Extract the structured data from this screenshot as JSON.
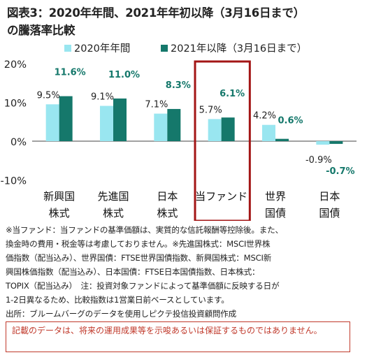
{
  "title_lines": [
    "図表3：2020年年間、2021年年初以降（3月16日まで）",
    "の騰落率比較"
  ],
  "chart_data": {
    "type": "bar",
    "categories": [
      [
        "新興国",
        "株式"
      ],
      [
        "先進国",
        "株式"
      ],
      [
        "日本",
        "株式"
      ],
      [
        "当ファンド"
      ],
      [
        "世界",
        "国債"
      ],
      [
        "日本",
        "国債"
      ]
    ],
    "series": [
      {
        "name": "2020年年間",
        "color": "#99e6f0",
        "values": [
          9.5,
          9.1,
          7.1,
          5.7,
          4.2,
          -0.9
        ],
        "labels": [
          "9.5%",
          "9.1%",
          "7.1%",
          "5.7%",
          "4.2%",
          "-0.9%"
        ]
      },
      {
        "name": "2021年以降（3月16日まで）",
        "color": "#15786b",
        "values": [
          11.6,
          11.0,
          8.3,
          6.1,
          0.6,
          -0.7
        ],
        "labels": [
          "11.6%",
          "11.0%",
          "8.3%",
          "6.1%",
          "0.6%",
          "-0.7%"
        ]
      }
    ],
    "yticks": [
      "20%",
      "10%",
      "0%",
      "-10%"
    ],
    "ytick_values": [
      20,
      10,
      0,
      -10
    ],
    "ylim": [
      -10,
      20
    ],
    "highlight_category": 3,
    "highlight_color": "#a31515"
  },
  "notes": [
    "※当ファンド：当ファンドの基準価額は、実質的な信託報酬等控除後。また、",
    "換金時の費用・税金等は考慮しておりません。※先進国株式：MSCI世界株",
    "価指数（配当込み）、世界国債：FTSE世界国債指数、新興国株式：MSCI新",
    "興国株価指数（配当込み）、日本国債：FTSE日本国債指数、日本株式：",
    "TOPIX（配当込み）　注：投資対象ファンドによって基準価額に反映する日が",
    "1-2日異なるため、比較指数は1営業日前ベースとしています。",
    "出所：ブルームバーグのデータを使用しピクテ投信投資顧問作成"
  ],
  "disclaimer": "記載のデータは、将来の運用成果等を示唆あるいは保証するものではありません。"
}
